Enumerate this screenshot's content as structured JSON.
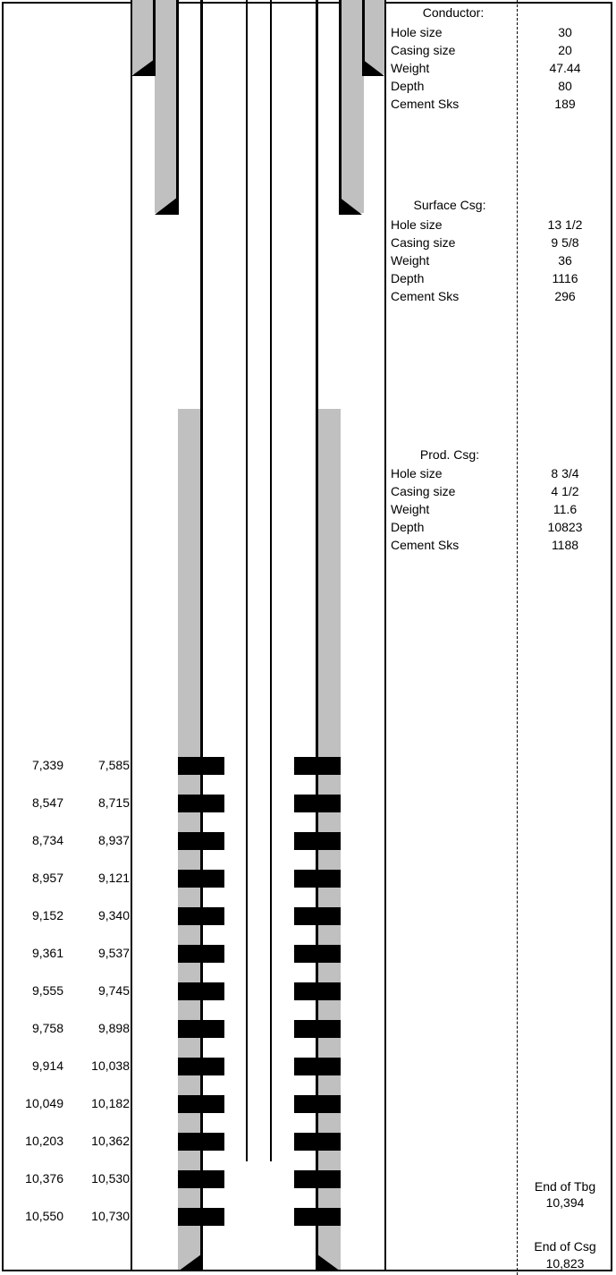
{
  "conductor": {
    "title": "Conductor:",
    "rows": [
      {
        "label": "Hole size",
        "value": "30"
      },
      {
        "label": "Casing size",
        "value": "20"
      },
      {
        "label": "Weight",
        "value": "47.44"
      },
      {
        "label": "Depth",
        "value": "80"
      },
      {
        "label": "Cement Sks",
        "value": "189"
      }
    ]
  },
  "surface": {
    "title": "Surface Csg:",
    "rows": [
      {
        "label": "Hole size",
        "value": "13 1/2"
      },
      {
        "label": "Casing size",
        "value": "9 5/8"
      },
      {
        "label": "Weight",
        "value": "36"
      },
      {
        "label": "Depth",
        "value": "1116"
      },
      {
        "label": "Cement Sks",
        "value": "296"
      }
    ]
  },
  "production": {
    "title": "Prod. Csg:",
    "rows": [
      {
        "label": "Hole size",
        "value": "8 3/4"
      },
      {
        "label": "Casing size",
        "value": "4 1/2"
      },
      {
        "label": "Weight",
        "value": "11.6"
      },
      {
        "label": "Depth",
        "value": "10823"
      },
      {
        "label": "Cement Sks",
        "value": "1188"
      }
    ]
  },
  "perforations": [
    {
      "top": "7,339",
      "bottom": "7,585"
    },
    {
      "top": "8,547",
      "bottom": "8,715"
    },
    {
      "top": "8,734",
      "bottom": "8,937"
    },
    {
      "top": "8,957",
      "bottom": "9,121"
    },
    {
      "top": "9,152",
      "bottom": "9,340"
    },
    {
      "top": "9,361",
      "bottom": "9,537"
    },
    {
      "top": "9,555",
      "bottom": "9,745"
    },
    {
      "top": "9,758",
      "bottom": "9,898"
    },
    {
      "top": "9,914",
      "bottom": "10,038"
    },
    {
      "top": "10,049",
      "bottom": "10,182"
    },
    {
      "top": "10,203",
      "bottom": "10,362"
    },
    {
      "top": "10,376",
      "bottom": "10,530"
    },
    {
      "top": "10,550",
      "bottom": "10,730"
    }
  ],
  "end_of_tubing": {
    "label": "End of Tbg",
    "value": "10,394"
  },
  "end_of_casing": {
    "label": "End of Csg",
    "value": "10,823"
  },
  "colors": {
    "cement": "#c0c0c0",
    "line": "#000000"
  }
}
